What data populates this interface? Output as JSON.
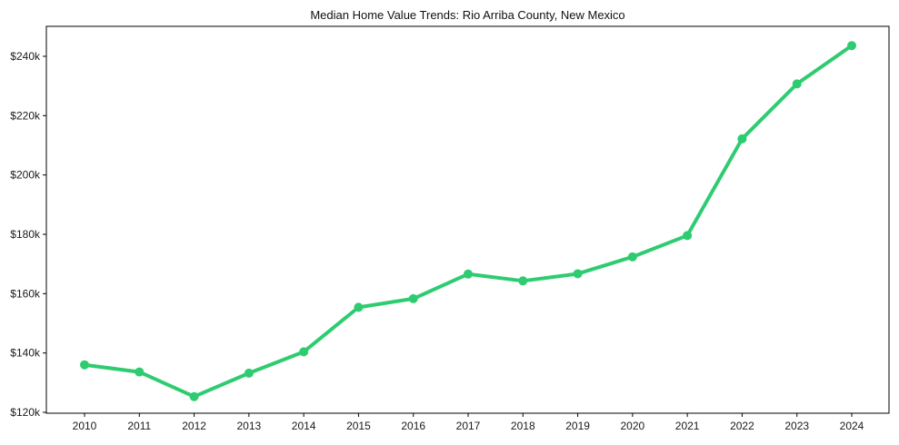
{
  "figure": {
    "title": "Median Home Value Trends: Rio Arriba County, New Mexico"
  },
  "chart_data": {
    "type": "line",
    "title": "Median Home Value Trends: Rio Arriba County, New Mexico",
    "x": [
      "2010",
      "2011",
      "2012",
      "2013",
      "2014",
      "2015",
      "2016",
      "2017",
      "2018",
      "2019",
      "2020",
      "2021",
      "2022",
      "2023",
      "2024"
    ],
    "series": [
      {
        "name": "Median Home Value",
        "values": [
          136000,
          133600,
          125300,
          133200,
          140400,
          155400,
          158300,
          166600,
          164300,
          166700,
          172400,
          179600,
          212200,
          230700,
          243600
        ],
        "color": "#2ecc71"
      }
    ],
    "xlabel": "",
    "ylabel": "",
    "yticks": [
      120000,
      140000,
      160000,
      180000,
      200000,
      220000,
      240000
    ],
    "ytick_labels": [
      "$120k",
      "$140k",
      "$160k",
      "$180k",
      "$200k",
      "$220k",
      "$240k"
    ],
    "ylim": [
      119700,
      250100
    ],
    "grid": false,
    "legend": "none",
    "marker": "circle"
  },
  "colors": {
    "line": "#2ecc71",
    "background": "#ffffff",
    "spine": "#000000",
    "tick_label": "#1a1a1a",
    "title": "#111111"
  }
}
